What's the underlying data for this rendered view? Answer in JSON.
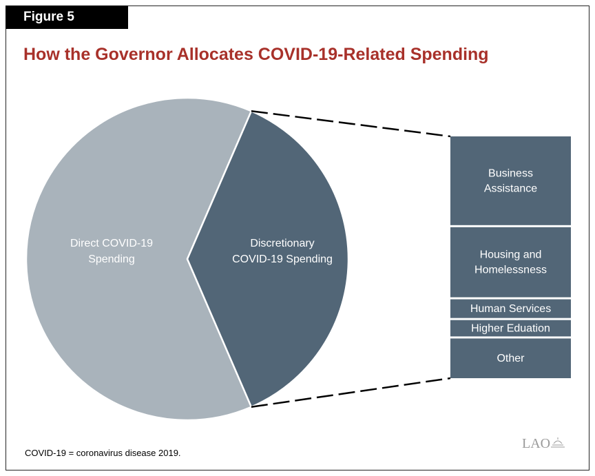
{
  "figure_label": "Figure 5",
  "chart_data": {
    "type": "pie",
    "title": "How the Governor Allocates COVID-19-Related Spending",
    "slices": [
      {
        "label_lines": [
          "Direct COVID-19",
          "Spending"
        ],
        "value": 63,
        "color": "#a9b3bb"
      },
      {
        "label_lines": [
          "Discretionary",
          "COVID-19 Spending"
        ],
        "value": 37,
        "color": "#526677"
      }
    ],
    "breakdown": {
      "of_slice": "Discretionary COVID-19 Spending",
      "color": "#526677",
      "segments": [
        {
          "label_lines": [
            "Business",
            "Assistance"
          ],
          "value": 38
        },
        {
          "label_lines": [
            "Housing and",
            "Homelessness"
          ],
          "value": 30
        },
        {
          "label_lines": [
            "Human Services"
          ],
          "value": 8
        },
        {
          "label_lines": [
            "Higher Eduation"
          ],
          "value": 7
        },
        {
          "label_lines": [
            "Other"
          ],
          "value": 17
        }
      ]
    }
  },
  "footnote": "COVID-19 = coronavirus disease 2019.",
  "logo": {
    "text": "LAO",
    "icon": "capitol-dome-icon"
  }
}
